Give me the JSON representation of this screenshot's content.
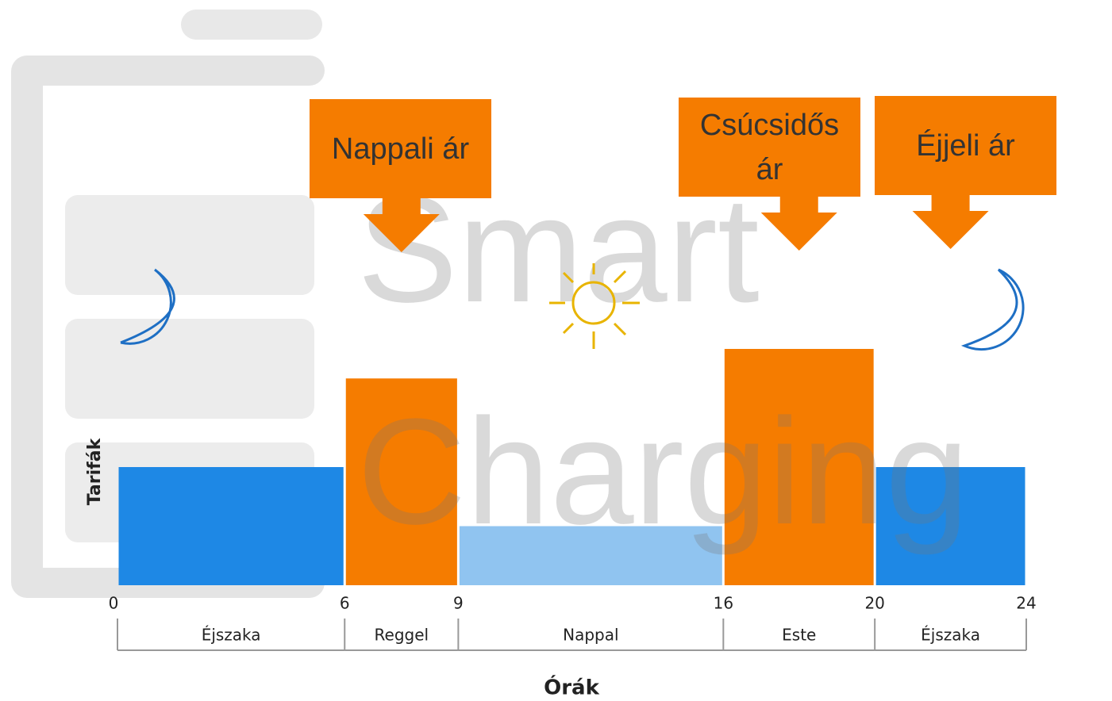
{
  "chart_data": {
    "type": "histogram",
    "watermark": "Smart Charging",
    "x_label": "Órák",
    "y_label": "Tarifák",
    "bins": [
      0,
      6,
      9,
      16,
      20,
      24
    ],
    "values": [
      2,
      3.5,
      1,
      4,
      2
    ],
    "colors": [
      "#1e88e5",
      "#f57c00",
      "#90c4f0",
      "#f57c00",
      "#1e88e5"
    ],
    "categories": [
      "Éjszaka",
      "Reggel",
      "Nappal",
      "Este",
      "Éjszaka"
    ],
    "xlim": [
      0,
      24
    ],
    "xticks": [
      0,
      6,
      9,
      16,
      20,
      24
    ],
    "ylim": [
      0,
      8
    ],
    "annotations": [
      "Nappali ár",
      "Csúcsidős ár",
      "Éjjeli ár"
    ],
    "annotation_color": "#f57c00"
  }
}
